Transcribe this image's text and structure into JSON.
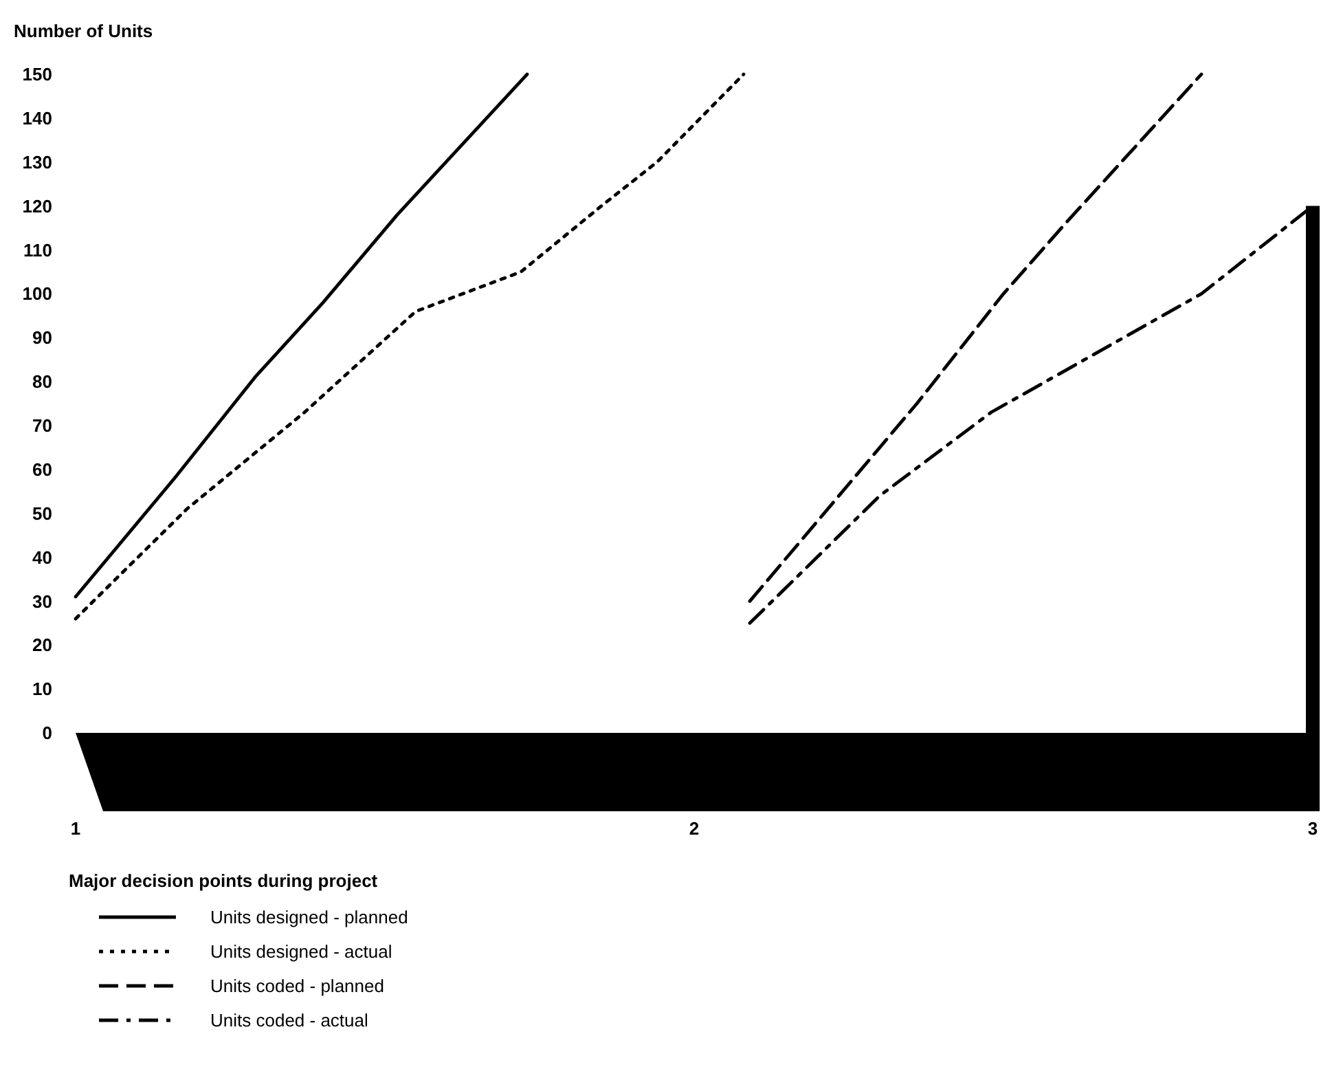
{
  "chart_data": {
    "type": "line",
    "ylabel": "Number of Units",
    "xlabel": "Major decision points during project",
    "xlim": [
      1,
      3
    ],
    "xticks": [
      1,
      2,
      3
    ],
    "ylim": [
      0,
      150
    ],
    "yticks": [
      0,
      10,
      20,
      30,
      40,
      50,
      60,
      70,
      80,
      90,
      100,
      110,
      120,
      130,
      140,
      150
    ],
    "grid": false,
    "legend": "bottom left",
    "marker": "none",
    "series": [
      {
        "name": "Units designed - planned",
        "color": "#000000",
        "line_style": "solid",
        "x": [
          1,
          1.16,
          1.29,
          1.4,
          1.52,
          1.73
        ],
        "values": [
          31,
          58,
          81,
          98,
          118,
          150
        ]
      },
      {
        "name": "Units designed - actual",
        "color": "#000000",
        "line_style": "dotted",
        "x": [
          1,
          1.18,
          1.37,
          1.55,
          1.72,
          1.85,
          1.94,
          2.08
        ],
        "values": [
          26,
          51,
          73,
          96,
          105,
          120,
          130,
          150
        ]
      },
      {
        "name": "Units coded - planned",
        "color": "#000000",
        "line_style": "dashed",
        "x": [
          2.09,
          2.36,
          2.5,
          2.6,
          2.82
        ],
        "values": [
          30,
          75,
          100,
          116,
          150
        ]
      },
      {
        "name": "Units coded - actual",
        "color": "#000000",
        "line_style": "dashdot",
        "x": [
          2.09,
          2.3,
          2.48,
          2.82,
          3
        ],
        "values": [
          25,
          54,
          73,
          100,
          120
        ]
      }
    ]
  }
}
